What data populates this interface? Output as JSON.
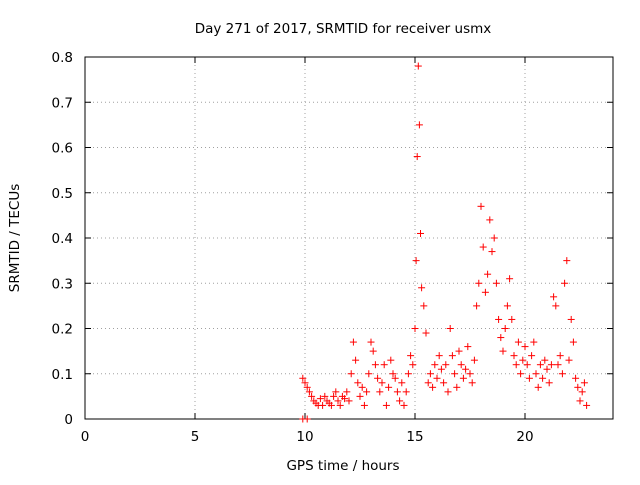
{
  "chart_data": {
    "type": "scatter",
    "title": "Day 271 of 2017, SRMTID for receiver usmx",
    "xlabel": "GPS time / hours",
    "ylabel": "SRMTID / TECUs",
    "xlim": [
      0,
      24
    ],
    "ylim": [
      0,
      0.8
    ],
    "x_ticks": [
      0,
      5,
      10,
      15,
      20
    ],
    "y_ticks": [
      0,
      0.1,
      0.2,
      0.3,
      0.4,
      0.5,
      0.6,
      0.7,
      0.8
    ],
    "grid": true,
    "marker": "+",
    "series_color": "#ff0000",
    "series": [
      {
        "name": "SRMTID",
        "points": [
          [
            9.9,
            0.0
          ],
          [
            10.1,
            0.0
          ],
          [
            9.9,
            0.09
          ],
          [
            10.0,
            0.08
          ],
          [
            10.1,
            0.07
          ],
          [
            10.2,
            0.06
          ],
          [
            10.3,
            0.05
          ],
          [
            10.4,
            0.04
          ],
          [
            10.5,
            0.035
          ],
          [
            10.6,
            0.03
          ],
          [
            10.7,
            0.045
          ],
          [
            10.8,
            0.03
          ],
          [
            10.9,
            0.05
          ],
          [
            11.0,
            0.04
          ],
          [
            11.1,
            0.035
          ],
          [
            11.2,
            0.03
          ],
          [
            11.3,
            0.05
          ],
          [
            11.4,
            0.06
          ],
          [
            11.5,
            0.04
          ],
          [
            11.6,
            0.03
          ],
          [
            11.7,
            0.05
          ],
          [
            11.8,
            0.045
          ],
          [
            11.9,
            0.06
          ],
          [
            12.0,
            0.04
          ],
          [
            12.1,
            0.1
          ],
          [
            12.2,
            0.17
          ],
          [
            12.3,
            0.13
          ],
          [
            12.4,
            0.08
          ],
          [
            12.5,
            0.05
          ],
          [
            12.6,
            0.07
          ],
          [
            12.7,
            0.03
          ],
          [
            12.8,
            0.06
          ],
          [
            12.9,
            0.1
          ],
          [
            13.0,
            0.17
          ],
          [
            13.1,
            0.15
          ],
          [
            13.2,
            0.12
          ],
          [
            13.3,
            0.09
          ],
          [
            13.4,
            0.06
          ],
          [
            13.5,
            0.08
          ],
          [
            13.6,
            0.12
          ],
          [
            13.7,
            0.03
          ],
          [
            13.8,
            0.07
          ],
          [
            13.9,
            0.13
          ],
          [
            14.0,
            0.1
          ],
          [
            14.1,
            0.09
          ],
          [
            14.2,
            0.06
          ],
          [
            14.3,
            0.04
          ],
          [
            14.4,
            0.08
          ],
          [
            14.5,
            0.03
          ],
          [
            14.6,
            0.06
          ],
          [
            14.7,
            0.1
          ],
          [
            14.8,
            0.14
          ],
          [
            14.9,
            0.12
          ],
          [
            15.0,
            0.2
          ],
          [
            15.05,
            0.35
          ],
          [
            15.1,
            0.58
          ],
          [
            15.15,
            0.78
          ],
          [
            15.2,
            0.65
          ],
          [
            15.25,
            0.41
          ],
          [
            15.3,
            0.29
          ],
          [
            15.4,
            0.25
          ],
          [
            15.5,
            0.19
          ],
          [
            15.6,
            0.08
          ],
          [
            15.7,
            0.1
          ],
          [
            15.8,
            0.07
          ],
          [
            15.9,
            0.12
          ],
          [
            16.0,
            0.09
          ],
          [
            16.1,
            0.14
          ],
          [
            16.2,
            0.11
          ],
          [
            16.3,
            0.08
          ],
          [
            16.4,
            0.12
          ],
          [
            16.5,
            0.06
          ],
          [
            16.6,
            0.2
          ],
          [
            16.7,
            0.14
          ],
          [
            16.8,
            0.1
          ],
          [
            16.9,
            0.07
          ],
          [
            17.0,
            0.15
          ],
          [
            17.1,
            0.12
          ],
          [
            17.2,
            0.09
          ],
          [
            17.3,
            0.11
          ],
          [
            17.4,
            0.16
          ],
          [
            17.5,
            0.1
          ],
          [
            17.6,
            0.08
          ],
          [
            17.7,
            0.13
          ],
          [
            17.8,
            0.25
          ],
          [
            17.9,
            0.3
          ],
          [
            18.0,
            0.47
          ],
          [
            18.1,
            0.38
          ],
          [
            18.2,
            0.28
          ],
          [
            18.3,
            0.32
          ],
          [
            18.4,
            0.44
          ],
          [
            18.5,
            0.37
          ],
          [
            18.6,
            0.4
          ],
          [
            18.7,
            0.3
          ],
          [
            18.8,
            0.22
          ],
          [
            18.9,
            0.18
          ],
          [
            19.0,
            0.15
          ],
          [
            19.1,
            0.2
          ],
          [
            19.2,
            0.25
          ],
          [
            19.3,
            0.31
          ],
          [
            19.4,
            0.22
          ],
          [
            19.5,
            0.14
          ],
          [
            19.6,
            0.12
          ],
          [
            19.7,
            0.17
          ],
          [
            19.8,
            0.1
          ],
          [
            19.9,
            0.13
          ],
          [
            20.0,
            0.16
          ],
          [
            20.1,
            0.12
          ],
          [
            20.2,
            0.09
          ],
          [
            20.3,
            0.14
          ],
          [
            20.4,
            0.17
          ],
          [
            20.5,
            0.1
          ],
          [
            20.6,
            0.07
          ],
          [
            20.7,
            0.12
          ],
          [
            20.8,
            0.09
          ],
          [
            20.9,
            0.13
          ],
          [
            21.0,
            0.11
          ],
          [
            21.1,
            0.08
          ],
          [
            21.2,
            0.12
          ],
          [
            21.3,
            0.27
          ],
          [
            21.4,
            0.25
          ],
          [
            21.5,
            0.12
          ],
          [
            21.6,
            0.14
          ],
          [
            21.7,
            0.1
          ],
          [
            21.8,
            0.3
          ],
          [
            21.9,
            0.35
          ],
          [
            22.0,
            0.13
          ],
          [
            22.1,
            0.22
          ],
          [
            22.2,
            0.17
          ],
          [
            22.3,
            0.09
          ],
          [
            22.4,
            0.07
          ],
          [
            22.5,
            0.04
          ],
          [
            22.6,
            0.06
          ],
          [
            22.7,
            0.08
          ],
          [
            22.8,
            0.03
          ]
        ]
      }
    ]
  }
}
